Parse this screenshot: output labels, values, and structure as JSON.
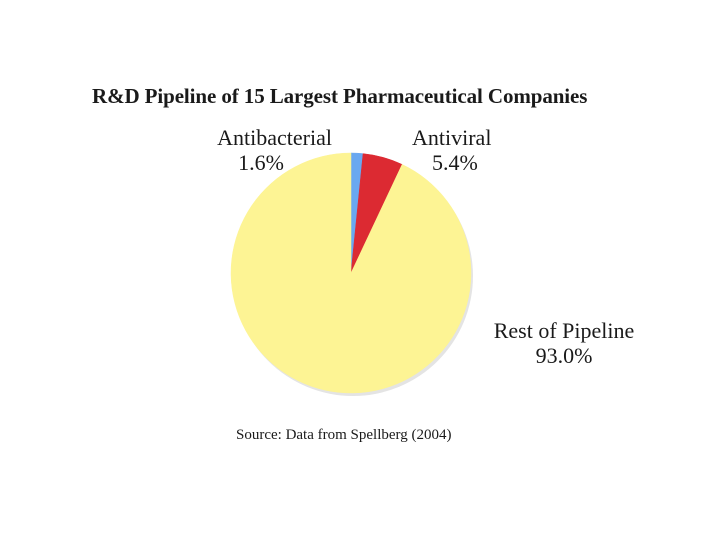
{
  "chart_data": {
    "type": "pie",
    "title": "R&D Pipeline of 15 Largest Pharmaceutical Companies",
    "slices": [
      {
        "label": "Antibacterial",
        "value": 1.6,
        "value_label": "1.6%",
        "color": "#6aa8f0"
      },
      {
        "label": "Antiviral",
        "value": 5.4,
        "value_label": "5.4%",
        "color": "#dc2a32"
      },
      {
        "label": "Rest of Pipeline",
        "value": 93.0,
        "value_label": "93.0%",
        "color": "#fdf494"
      }
    ],
    "source": "Source:  Data from Spellberg (2004)"
  }
}
